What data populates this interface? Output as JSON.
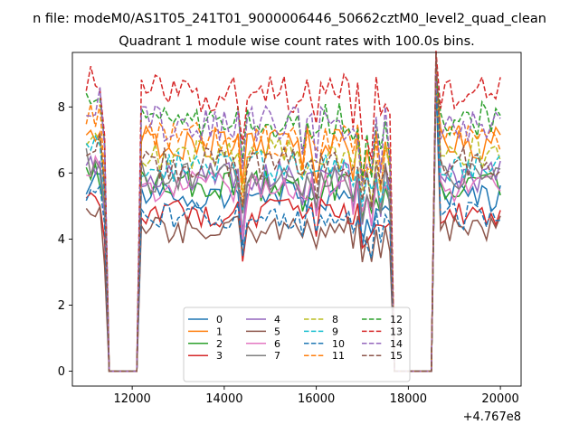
{
  "chart_data": {
    "type": "line",
    "suptitle": "n file: modeM0/AS1T05_241T01_9000006446_50662cztM0_level2_quad_clean",
    "title": "Quadrant 1 module wise count rates with 100.0s bins.",
    "xlabel": "",
    "ylabel": "",
    "x_offset_label": "+4.767e8",
    "xlim": [
      10700,
      20450
    ],
    "ylim": [
      -0.45,
      9.65
    ],
    "x_ticks": [
      12000,
      14000,
      16000,
      18000,
      20000
    ],
    "y_ticks": [
      0,
      2,
      4,
      6,
      8
    ],
    "grid": false,
    "legend_position": "lower-center",
    "legend_columns": 4,
    "x": {
      "start": 11000,
      "step": 100,
      "count": 91
    },
    "gaps": [
      [
        11500,
        12100
      ],
      [
        17700,
        18500
      ]
    ],
    "series": [
      {
        "name": "0",
        "color": "#1f77b4",
        "dash": "solid",
        "level": 5.3,
        "dip": 0.8
      },
      {
        "name": "1",
        "color": "#ff7f0e",
        "dash": "solid",
        "level": 6.9,
        "dip": 1.0
      },
      {
        "name": "2",
        "color": "#2ca02c",
        "dash": "solid",
        "level": 5.6,
        "dip": 0.8
      },
      {
        "name": "3",
        "color": "#d62728",
        "dash": "solid",
        "level": 4.8,
        "dip": 0.7
      },
      {
        "name": "4",
        "color": "#9467bd",
        "dash": "solid",
        "level": 5.9,
        "dip": 0.9
      },
      {
        "name": "5",
        "color": "#8c564b",
        "dash": "solid",
        "level": 4.3,
        "dip": 0.7
      },
      {
        "name": "6",
        "color": "#e377c2",
        "dash": "solid",
        "level": 5.6,
        "dip": 0.8
      },
      {
        "name": "7",
        "color": "#7f7f7f",
        "dash": "solid",
        "level": 5.9,
        "dip": 0.9
      },
      {
        "name": "8",
        "color": "#bcbd22",
        "dash": "dashed",
        "level": 6.6,
        "dip": 1.0
      },
      {
        "name": "9",
        "color": "#17becf",
        "dash": "dashed",
        "level": 6.2,
        "dip": 0.9
      },
      {
        "name": "10",
        "color": "#1f77b4",
        "dash": "dashed",
        "level": 4.7,
        "dip": 0.7
      },
      {
        "name": "11",
        "color": "#ff7f0e",
        "dash": "dashed",
        "level": 7.0,
        "dip": 1.0
      },
      {
        "name": "12",
        "color": "#2ca02c",
        "dash": "dashed",
        "level": 7.6,
        "dip": 1.1
      },
      {
        "name": "13",
        "color": "#d62728",
        "dash": "dashed",
        "level": 8.4,
        "dip": 1.2
      },
      {
        "name": "14",
        "color": "#9467bd",
        "dash": "dashed",
        "level": 7.5,
        "dip": 1.1
      },
      {
        "name": "15",
        "color": "#8c564b",
        "dash": "dashed",
        "level": 6.3,
        "dip": 0.9
      }
    ]
  }
}
